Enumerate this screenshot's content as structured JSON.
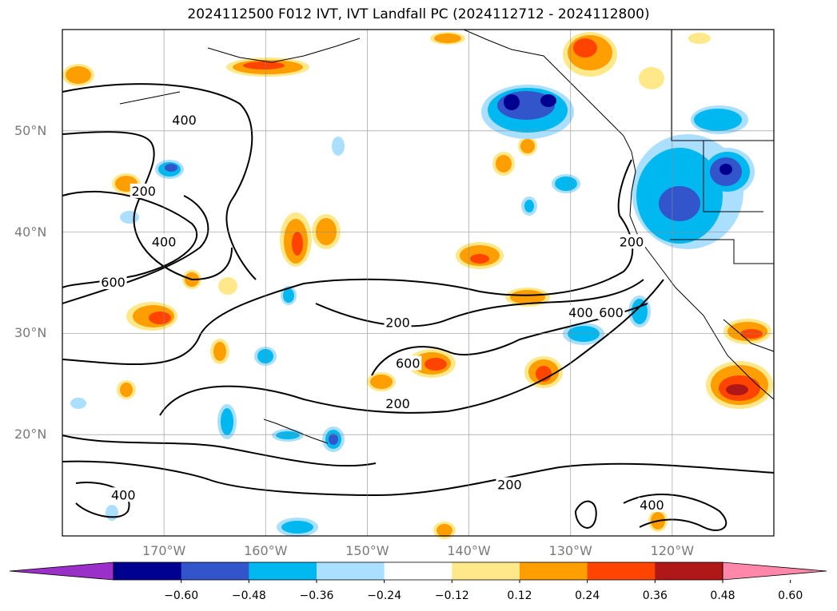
{
  "title": "2024112500 F012 IVT, IVT Landfall PC (2024112712 - 2024112800)",
  "map": {
    "lon_range": [
      -180,
      -110
    ],
    "lat_range": [
      10,
      60
    ],
    "lat_ticks": [
      {
        "lat": 50,
        "label": "50°N"
      },
      {
        "lat": 40,
        "label": "40°N"
      },
      {
        "lat": 30,
        "label": "30°N"
      },
      {
        "lat": 20,
        "label": "20°N"
      }
    ],
    "lon_ticks": [
      {
        "lon": -170,
        "label": "170°W"
      },
      {
        "lon": -160,
        "label": "160°W"
      },
      {
        "lon": -150,
        "label": "150°W"
      },
      {
        "lon": -140,
        "label": "140°W"
      },
      {
        "lon": -130,
        "label": "130°W"
      },
      {
        "lon": -120,
        "label": "120°W"
      }
    ],
    "grid": true,
    "contour_labels": [
      {
        "text": "400",
        "lon": -168,
        "lat": 51
      },
      {
        "text": "200",
        "lon": -172,
        "lat": 44
      },
      {
        "text": "400",
        "lon": -170,
        "lat": 39
      },
      {
        "text": "600",
        "lon": -175,
        "lat": 35
      },
      {
        "text": "200",
        "lon": -124,
        "lat": 39
      },
      {
        "text": "600",
        "lon": -126,
        "lat": 32
      },
      {
        "text": "400",
        "lon": -129,
        "lat": 32
      },
      {
        "text": "200",
        "lon": -147,
        "lat": 31
      },
      {
        "text": "600",
        "lon": -146,
        "lat": 27
      },
      {
        "text": "200",
        "lon": -147,
        "lat": 23
      },
      {
        "text": "200",
        "lon": -136,
        "lat": 15
      },
      {
        "text": "400",
        "lon": -174,
        "lat": 14
      },
      {
        "text": "400",
        "lon": -122,
        "lat": 13
      }
    ]
  },
  "colorbar": {
    "colors": [
      "#9b30c8",
      "#000090",
      "#3355cc",
      "#00b8f0",
      "#aadfff",
      "#ffffff",
      "#ffe88a",
      "#ff9e00",
      "#ff4400",
      "#b01818",
      "#ff88aa"
    ],
    "labels": [
      "−0.60",
      "−0.48",
      "−0.36",
      "−0.24",
      "−0.12",
      "0.12",
      "0.24",
      "0.36",
      "0.48",
      "0.60"
    ],
    "extend": "both"
  }
}
